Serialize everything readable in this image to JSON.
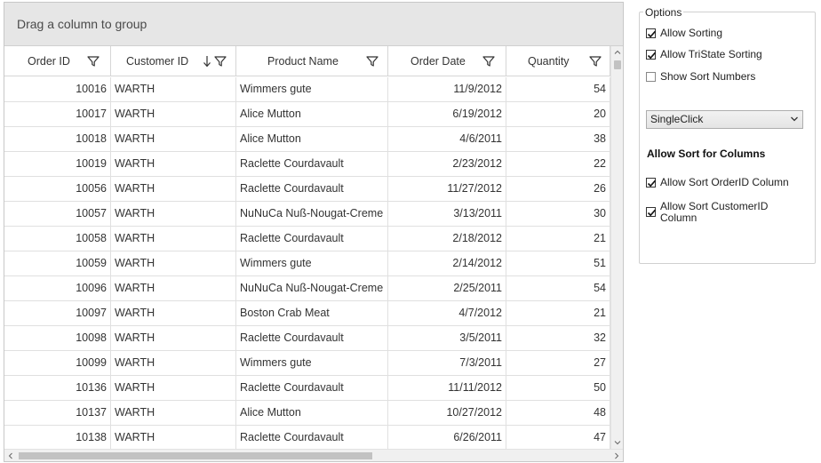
{
  "grid": {
    "group_panel_text": "Drag a column to group",
    "columns": [
      {
        "label": "Order ID"
      },
      {
        "label": "Customer ID"
      },
      {
        "label": "Product Name"
      },
      {
        "label": "Order Date"
      },
      {
        "label": "Quantity"
      }
    ],
    "rows": [
      {
        "order_id": "10016",
        "customer_id": "WARTH",
        "product": "Wimmers gute",
        "date": "11/9/2012",
        "qty": "54"
      },
      {
        "order_id": "10017",
        "customer_id": "WARTH",
        "product": "Alice Mutton",
        "date": "6/19/2012",
        "qty": "20"
      },
      {
        "order_id": "10018",
        "customer_id": "WARTH",
        "product": "Alice Mutton",
        "date": "4/6/2011",
        "qty": "38"
      },
      {
        "order_id": "10019",
        "customer_id": "WARTH",
        "product": "Raclette Courdavault",
        "date": "2/23/2012",
        "qty": "22"
      },
      {
        "order_id": "10056",
        "customer_id": "WARTH",
        "product": "Raclette Courdavault",
        "date": "11/27/2012",
        "qty": "26"
      },
      {
        "order_id": "10057",
        "customer_id": "WARTH",
        "product": "NuNuCa Nuß-Nougat-Creme",
        "date": "3/13/2011",
        "qty": "30"
      },
      {
        "order_id": "10058",
        "customer_id": "WARTH",
        "product": "Raclette Courdavault",
        "date": "2/18/2012",
        "qty": "21"
      },
      {
        "order_id": "10059",
        "customer_id": "WARTH",
        "product": "Wimmers gute",
        "date": "2/14/2012",
        "qty": "51"
      },
      {
        "order_id": "10096",
        "customer_id": "WARTH",
        "product": "NuNuCa Nuß-Nougat-Creme",
        "date": "2/25/2011",
        "qty": "54"
      },
      {
        "order_id": "10097",
        "customer_id": "WARTH",
        "product": "Boston Crab Meat",
        "date": "4/7/2012",
        "qty": "21"
      },
      {
        "order_id": "10098",
        "customer_id": "WARTH",
        "product": "Raclette Courdavault",
        "date": "3/5/2011",
        "qty": "32"
      },
      {
        "order_id": "10099",
        "customer_id": "WARTH",
        "product": "Wimmers gute",
        "date": "7/3/2011",
        "qty": "27"
      },
      {
        "order_id": "10136",
        "customer_id": "WARTH",
        "product": "Raclette Courdavault",
        "date": "11/11/2012",
        "qty": "50"
      },
      {
        "order_id": "10137",
        "customer_id": "WARTH",
        "product": "Alice Mutton",
        "date": "10/27/2012",
        "qty": "48"
      },
      {
        "order_id": "10138",
        "customer_id": "WARTH",
        "product": "Raclette Courdavault",
        "date": "6/26/2011",
        "qty": "47"
      }
    ]
  },
  "options": {
    "legend": "Options",
    "allow_sorting": {
      "label": "Allow Sorting",
      "checked": true
    },
    "allow_tristate_sorting": {
      "label": "Allow TriState Sorting",
      "checked": true
    },
    "show_sort_numbers": {
      "label": "Show Sort Numbers",
      "checked": false
    },
    "sort_click_action": {
      "selected": "SingleClick"
    },
    "section_title": "Allow Sort for Columns",
    "allow_sort_orderid": {
      "label": "Allow Sort OrderID Column",
      "checked": true
    },
    "allow_sort_customerid": {
      "label_line1": "Allow Sort CustomerID",
      "label_line2": "Column",
      "checked": true
    }
  },
  "icons": {
    "filter": "filter-icon",
    "sort_descending": "sort-descending-icon",
    "checkmark": "checkmark-icon",
    "dropdown": "chevron-down-icon"
  }
}
